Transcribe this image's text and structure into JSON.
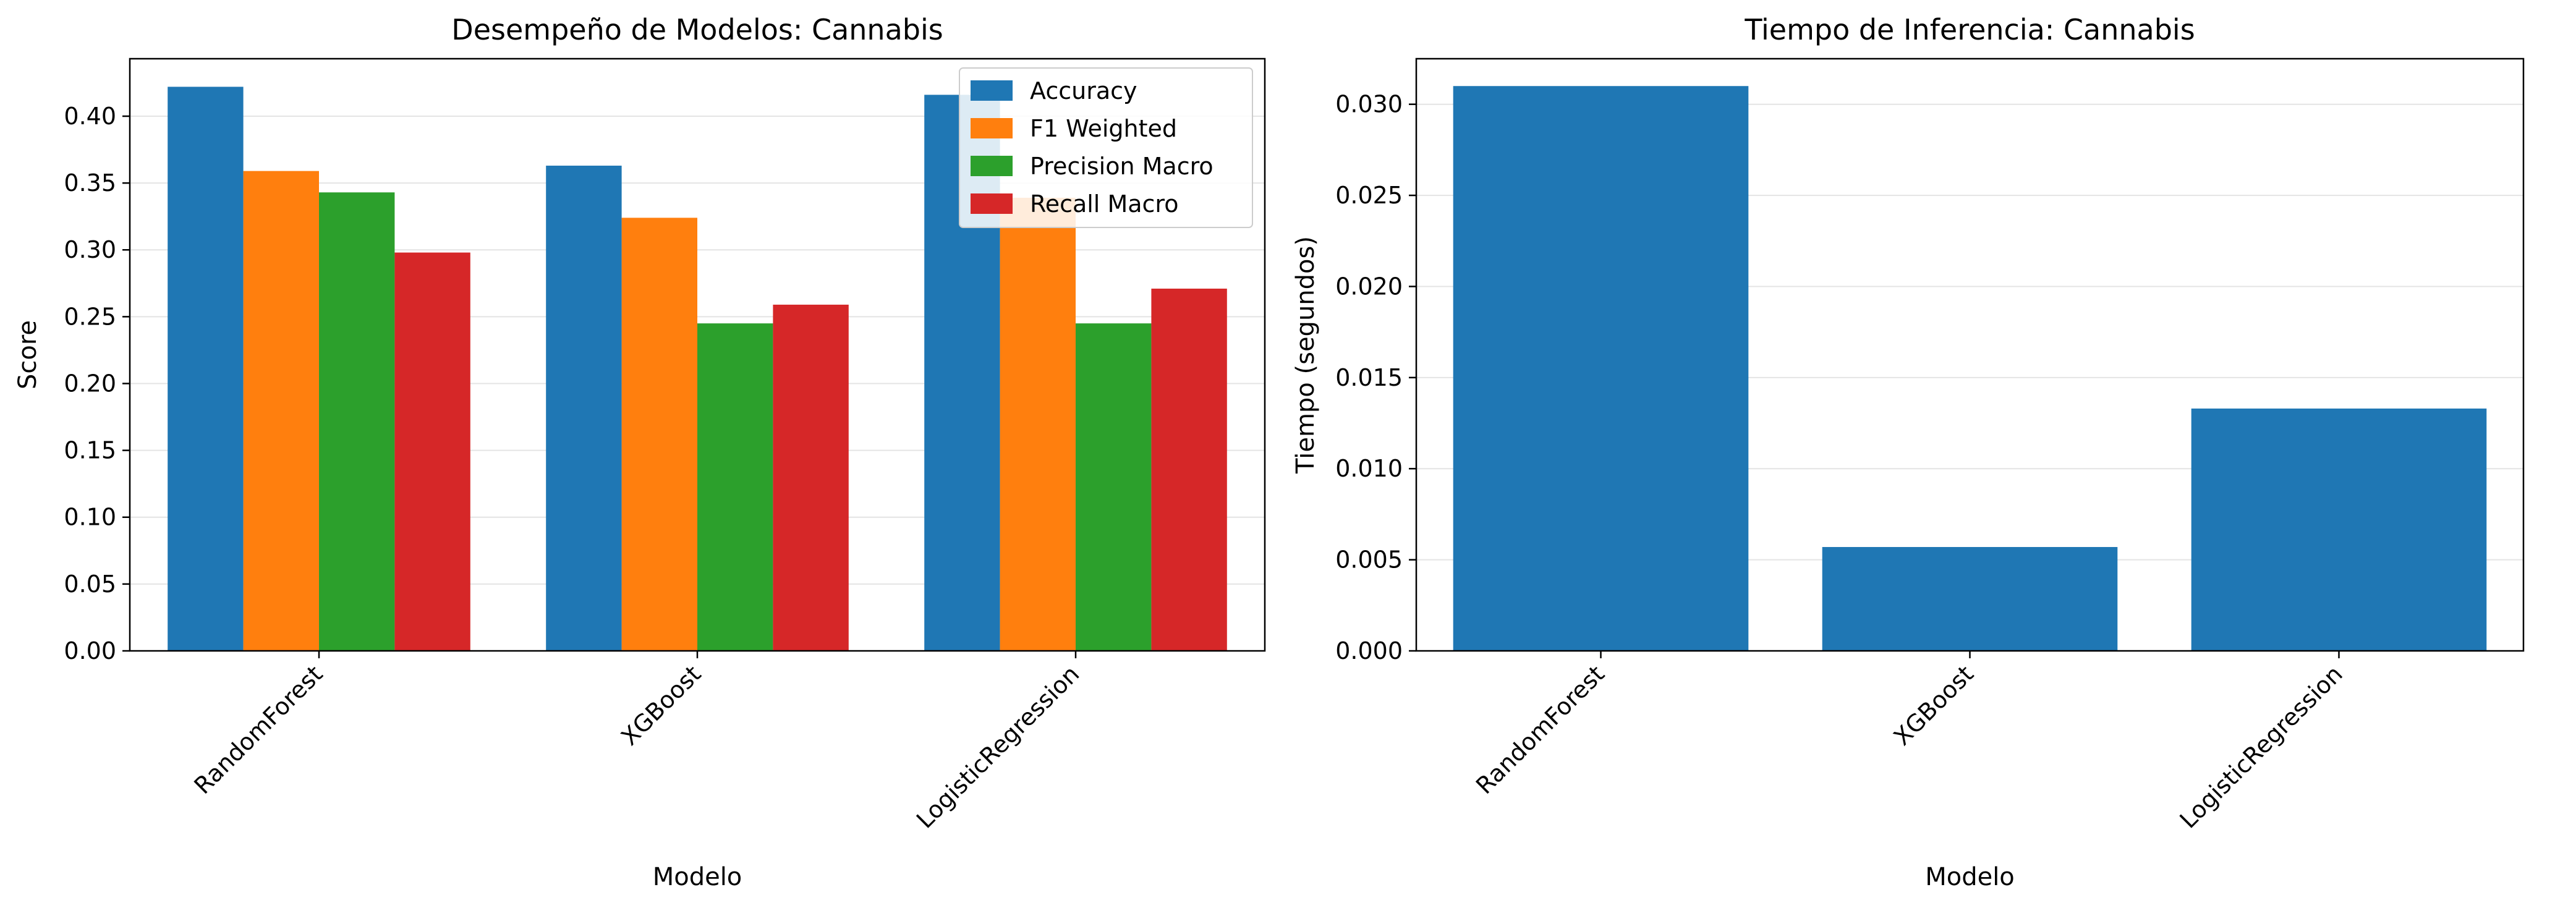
{
  "chart_data": [
    {
      "type": "bar",
      "title": "Desempeño de Modelos: Cannabis",
      "xlabel": "Modelo",
      "ylabel": "Score",
      "categories": [
        "RandomForest",
        "XGBoost",
        "LogisticRegression"
      ],
      "series": [
        {
          "name": "Accuracy",
          "color": "#1f77b4",
          "values": [
            0.422,
            0.363,
            0.416
          ]
        },
        {
          "name": "F1 Weighted",
          "color": "#ff7f0e",
          "values": [
            0.359,
            0.324,
            0.339
          ]
        },
        {
          "name": "Precision Macro",
          "color": "#2ca02c",
          "values": [
            0.343,
            0.245,
            0.245
          ]
        },
        {
          "name": "Recall Macro",
          "color": "#d62728",
          "values": [
            0.298,
            0.259,
            0.271
          ]
        }
      ],
      "ylim": [
        0,
        0.443
      ],
      "yticks": [
        0.0,
        0.05,
        0.1,
        0.15,
        0.2,
        0.25,
        0.3,
        0.35,
        0.4
      ],
      "ytick_labels": [
        "0.00",
        "0.05",
        "0.10",
        "0.15",
        "0.20",
        "0.25",
        "0.30",
        "0.35",
        "0.40"
      ],
      "grid": "y",
      "legend": "top-right"
    },
    {
      "type": "bar",
      "title": "Tiempo de Inferencia: Cannabis",
      "xlabel": "Modelo",
      "ylabel": "Tiempo (segundos)",
      "categories": [
        "RandomForest",
        "XGBoost",
        "LogisticRegression"
      ],
      "series": [
        {
          "color": "#1f77b4",
          "values": [
            0.031,
            0.0057,
            0.0133
          ]
        }
      ],
      "ylim": [
        0,
        0.0325
      ],
      "yticks": [
        0.0,
        0.005,
        0.01,
        0.015,
        0.02,
        0.025,
        0.03
      ],
      "ytick_labels": [
        "0.000",
        "0.005",
        "0.010",
        "0.015",
        "0.020",
        "0.025",
        "0.030"
      ],
      "grid": "y"
    }
  ]
}
